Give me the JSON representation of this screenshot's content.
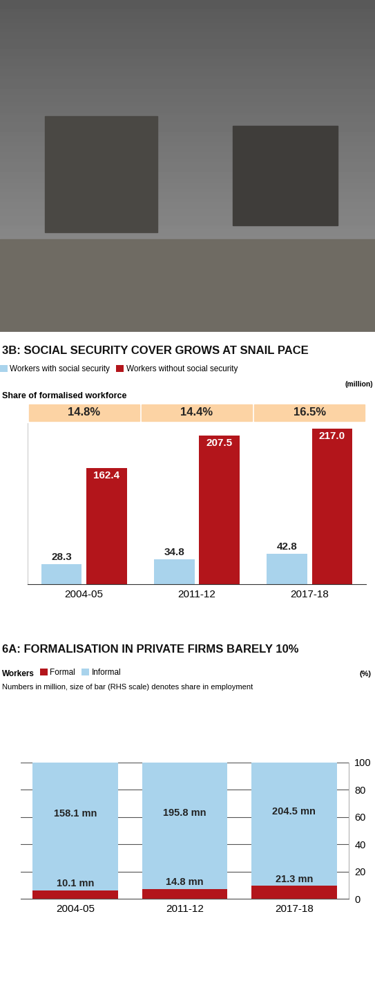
{
  "chart_data": [
    {
      "type": "bar",
      "title": "3B: SOCIAL SECURITY COVER GROWS AT SNAIL PACE",
      "unit": "(million)",
      "categories": [
        "2004-05",
        "2011-12",
        "2017-18"
      ],
      "series": [
        {
          "name": "Workers with social security",
          "color": "#a9d3ec",
          "values": [
            28.3,
            34.8,
            42.8
          ]
        },
        {
          "name": "Workers without social security",
          "color": "#b3151b",
          "values": [
            162.4,
            207.5,
            217.0
          ]
        }
      ],
      "share_label": "Share of formalised workforce",
      "share_values": [
        14.8,
        14.4,
        16.5
      ],
      "share_value_labels": [
        "14.8%",
        "14.4%",
        "16.5%"
      ],
      "ylim": [
        0,
        225
      ],
      "yticks": [],
      "data_labels": true,
      "tick_labels": "x",
      "legend": "upper left"
    },
    {
      "type": "bar",
      "stacked": true,
      "title": "6A: FORMALISATION IN PRIVATE FIRMS BARELY 10%",
      "subtitle": "Numbers in million, size of bar (RHS scale) denotes share in employment",
      "legend_title": "Workers",
      "unit": "(%)",
      "categories": [
        "2004-05",
        "2011-12",
        "2017-18"
      ],
      "series": [
        {
          "name": "Formal",
          "color": "#b3151b",
          "values": [
            6.0,
            7.0,
            9.4
          ],
          "number_labels": [
            "10.1 mn",
            "14.8 mn",
            "21.3 mn"
          ]
        },
        {
          "name": "Informal",
          "color": "#a9d3ec",
          "values": [
            94.0,
            93.0,
            90.6
          ],
          "number_labels": [
            "158.1 mn",
            "195.8 mn",
            "204.5 mn"
          ]
        }
      ],
      "ylim": [
        0,
        100
      ],
      "yticks": [
        0,
        20,
        40,
        60,
        80,
        100
      ],
      "grid": true,
      "legend": "upper left"
    }
  ]
}
